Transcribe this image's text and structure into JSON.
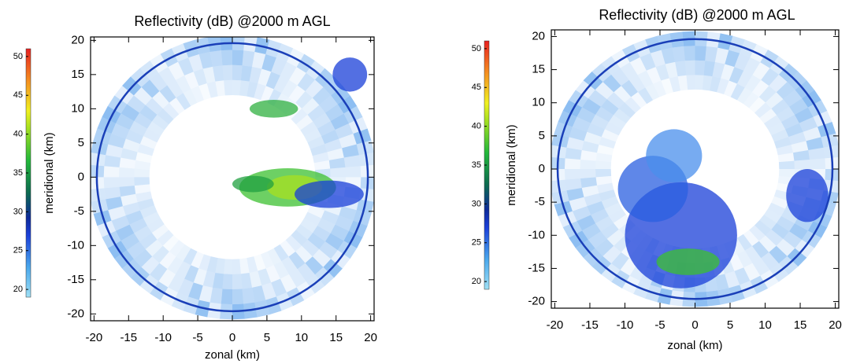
{
  "chart_data": [
    {
      "type": "heatmap",
      "title": "Reflectivity (dB) @2000 m AGL",
      "xlabel": "zonal (km)",
      "ylabel": "meridional (km)",
      "xlim": [
        -20.5,
        20.5
      ],
      "ylim": [
        -21,
        20.5
      ],
      "xticks": [
        -20,
        -15,
        -10,
        -5,
        0,
        5,
        10,
        15,
        20
      ],
      "yticks": [
        -20,
        -15,
        -10,
        -5,
        0,
        5,
        10,
        15,
        20
      ],
      "colorbar": {
        "lim": [
          19,
          51
        ],
        "ticks": [
          20,
          25,
          30,
          35,
          40,
          45,
          50
        ]
      }
    },
    {
      "type": "heatmap",
      "title": "Reflectivity (dB) @2000 m AGL",
      "xlabel": "zonal (km)",
      "ylabel": "meridional (km)",
      "xlim": [
        -20.5,
        20.5
      ],
      "ylim": [
        -21,
        21
      ],
      "xticks": [
        -20,
        -15,
        -10,
        -5,
        0,
        5,
        10,
        15,
        20
      ],
      "yticks": [
        -20,
        -15,
        -10,
        -5,
        0,
        5,
        10,
        15,
        20
      ],
      "colorbar": {
        "lim": [
          19,
          51
        ],
        "ticks": [
          20,
          25,
          30,
          35,
          40,
          45,
          50
        ]
      }
    }
  ]
}
